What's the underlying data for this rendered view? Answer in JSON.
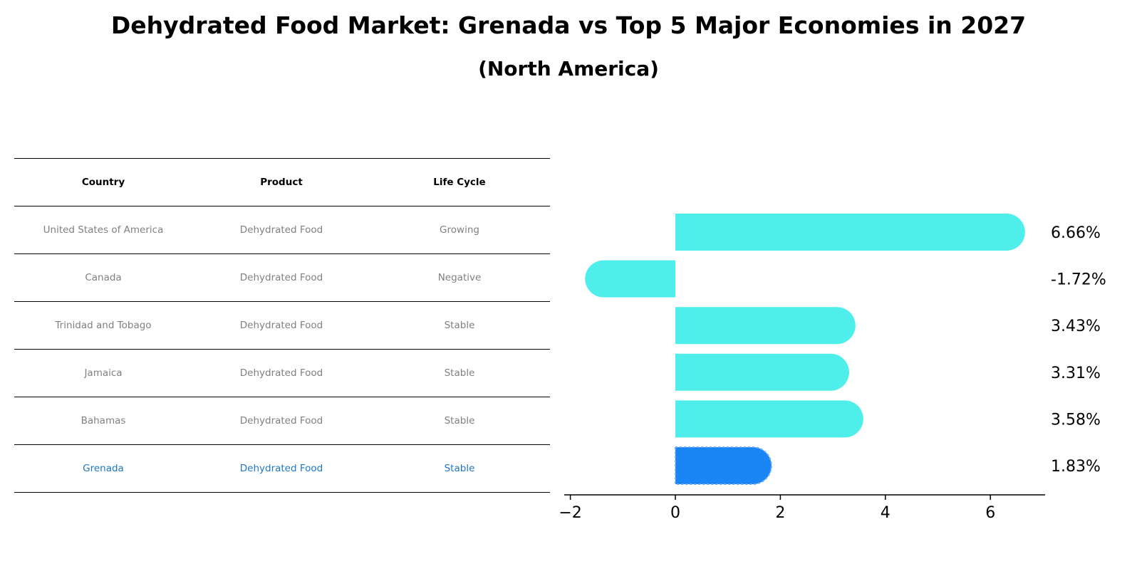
{
  "title": "Dehydrated Food Market: Grenada vs Top 5 Major Economies in 2027",
  "subtitle": "(North America)",
  "table": {
    "headers": [
      "Country",
      "Product",
      "Life Cycle"
    ],
    "rows": [
      [
        "United States of America",
        "Dehydrated Food",
        "Growing"
      ],
      [
        "Canada",
        "Dehydrated Food",
        "Negative"
      ],
      [
        "Trinidad and Tobago",
        "Dehydrated Food",
        "Stable"
      ],
      [
        "Jamaica",
        "Dehydrated Food",
        "Stable"
      ],
      [
        "Bahamas",
        "Dehydrated Food",
        "Stable"
      ],
      [
        "Grenada",
        "Dehydrated Food",
        "Stable"
      ]
    ],
    "highlight_row": 5,
    "highlight_color": "#1f77c4"
  },
  "chart_data": {
    "type": "bar",
    "orientation": "horizontal",
    "categories": [
      "United States of America",
      "Canada",
      "Trinidad and Tobago",
      "Jamaica",
      "Bahamas",
      "Grenada"
    ],
    "values": [
      6.66,
      -1.72,
      3.43,
      3.31,
      3.58,
      1.83
    ],
    "value_labels": [
      "6.66%",
      "-1.72%",
      "3.43%",
      "3.31%",
      "3.58%",
      "1.83%"
    ],
    "xlim": [
      -2,
      7
    ],
    "xticks": [
      -2,
      0,
      2,
      4,
      6
    ],
    "xtick_labels": [
      "−2",
      "0",
      "2",
      "4",
      "6"
    ],
    "bar_color": "#4eefea",
    "highlight_color": "#1a85f5",
    "highlight_index": 5,
    "grid": false
  }
}
